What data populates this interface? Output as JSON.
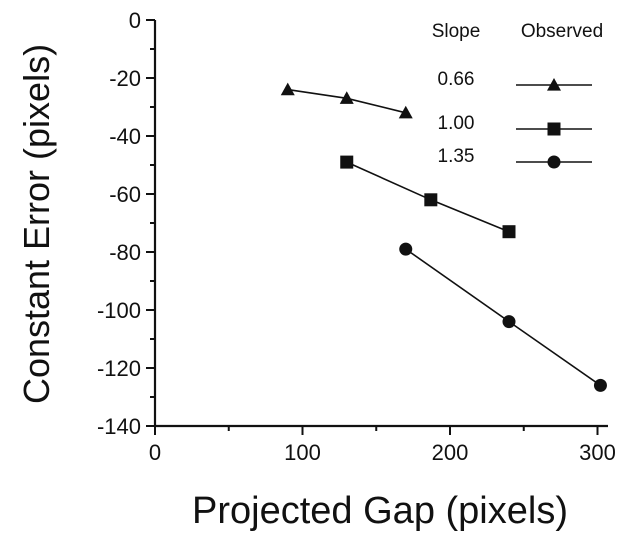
{
  "chart_data": {
    "type": "line",
    "xlabel": "Projected Gap (pixels)",
    "ylabel": "Constant Error (pixels)",
    "xlim": [
      0,
      350
    ],
    "ylim": [
      -140,
      0
    ],
    "x_ticks": [
      0,
      100,
      200,
      300
    ],
    "y_ticks": [
      0,
      -20,
      -40,
      -60,
      -80,
      -100,
      -120,
      -140
    ],
    "grid": false,
    "legend": {
      "placement": "top-right",
      "header_left": "Slope",
      "header_right": "Observed"
    },
    "series": [
      {
        "name": "0.66",
        "marker": "triangle",
        "x": [
          90,
          130,
          170
        ],
        "y": [
          -24,
          -27,
          -32
        ]
      },
      {
        "name": "1.00",
        "marker": "square",
        "x": [
          130,
          187,
          240
        ],
        "y": [
          -49,
          -62,
          -73
        ]
      },
      {
        "name": "1.35",
        "marker": "circle",
        "x": [
          170,
          240,
          302
        ],
        "y": [
          -79,
          -104,
          -126
        ]
      }
    ]
  }
}
